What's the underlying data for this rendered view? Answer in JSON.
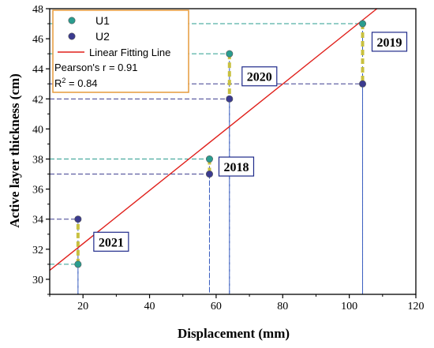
{
  "chart_data": {
    "type": "scatter",
    "xlabel": "Displacement (mm)",
    "ylabel": "Active layer thickness (cm)",
    "xlim": [
      10,
      120
    ],
    "ylim": [
      29,
      48
    ],
    "xticks": [
      20,
      40,
      60,
      80,
      100,
      120
    ],
    "yticks": [
      30,
      32,
      34,
      36,
      38,
      40,
      42,
      44,
      46,
      48
    ],
    "series": [
      {
        "name": "U1",
        "color": "#2a9d8f",
        "points": [
          {
            "x": 18.5,
            "y": 31
          },
          {
            "x": 58,
            "y": 38
          },
          {
            "x": 64,
            "y": 45
          },
          {
            "x": 104,
            "y": 47
          }
        ]
      },
      {
        "name": "U2",
        "color": "#3b3b8f",
        "points": [
          {
            "x": 18.5,
            "y": 34
          },
          {
            "x": 58,
            "y": 37
          },
          {
            "x": 64,
            "y": 42
          },
          {
            "x": 104,
            "y": 43
          }
        ]
      }
    ],
    "fit_line": {
      "name": "Linear Fitting Line",
      "color": "#e0201b",
      "from": {
        "x": 10,
        "y": 30.6
      },
      "to": {
        "x": 108.3,
        "y": 48
      }
    },
    "stats": {
      "pearson": "Pearson's r = 0.91",
      "r2_prefix": "R",
      "r2_sup": "2",
      "r2_suffix": " = 0.84"
    },
    "year_labels": [
      {
        "text": "2021",
        "x": 18.5
      },
      {
        "text": "2018",
        "x": 58
      },
      {
        "text": "2020",
        "x": 64
      },
      {
        "text": "2019",
        "x": 104
      }
    ],
    "legend_position": "top-left",
    "grid": false
  }
}
